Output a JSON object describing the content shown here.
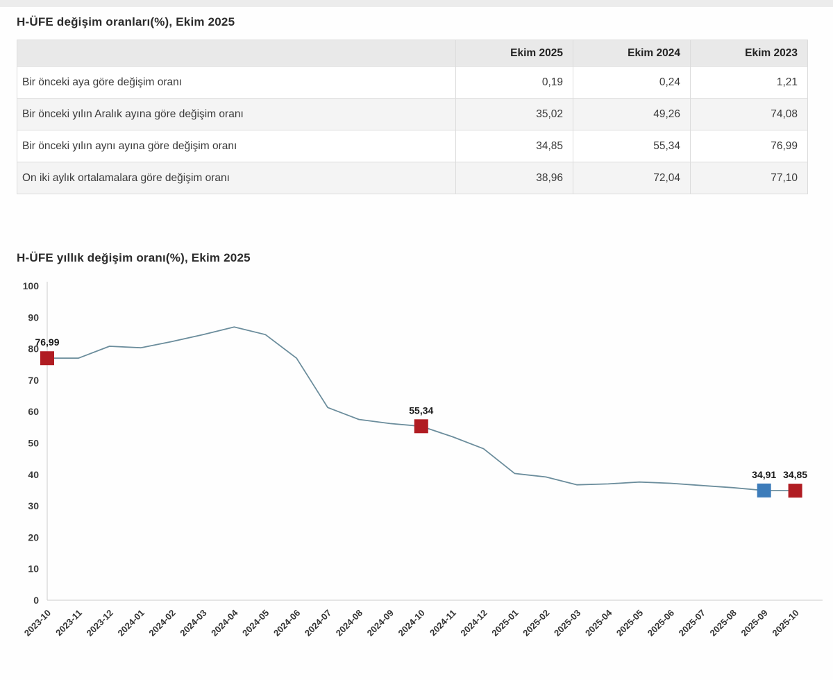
{
  "page": {
    "table_title": "H-ÜFE değişim oranları(%), Ekim 2025",
    "chart_title": "H-ÜFE yıllık değişim oranı(%), Ekim 2025"
  },
  "table": {
    "columns": [
      "",
      "Ekim 2025",
      "Ekim 2024",
      "Ekim 2023"
    ],
    "rows": [
      {
        "label": "Bir önceki aya göre değişim oranı",
        "values": [
          "0,19",
          "0,24",
          "1,21"
        ]
      },
      {
        "label": "Bir önceki yılın Aralık ayına göre değişim oranı",
        "values": [
          "35,02",
          "49,26",
          "74,08"
        ]
      },
      {
        "label": "Bir önceki yılın aynı ayına göre değişim oranı",
        "values": [
          "34,85",
          "55,34",
          "76,99"
        ]
      },
      {
        "label": "On iki aylık ortalamalara göre değişim oranı",
        "values": [
          "38,96",
          "72,04",
          "77,10"
        ]
      }
    ]
  },
  "chart_data": {
    "type": "line",
    "title": "H-ÜFE yıllık değişim oranı(%), Ekim 2025",
    "xlabel": "",
    "ylabel": "",
    "ylim": [
      0,
      100
    ],
    "ytick_step": 10,
    "grid": false,
    "legend": "none",
    "line_color": "#6b8d9c",
    "axis_color": "#cccccc",
    "x": [
      "2023-10",
      "2023-11",
      "2023-12",
      "2024-01",
      "2024-02",
      "2024-03",
      "2024-04",
      "2024-05",
      "2024-06",
      "2024-07",
      "2024-08",
      "2024-09",
      "2024-10",
      "2024-11",
      "2024-12",
      "2025-01",
      "2025-02",
      "2025-03",
      "2025-04",
      "2025-05",
      "2025-06",
      "2025-07",
      "2025-08",
      "2025-09",
      "2025-10"
    ],
    "values": [
      76.99,
      77.0,
      80.8,
      80.3,
      82.3,
      84.5,
      86.9,
      84.5,
      77.0,
      61.3,
      57.5,
      56.2,
      55.34,
      52.0,
      48.2,
      40.3,
      39.2,
      36.7,
      37.0,
      37.6,
      37.2,
      36.5,
      35.8,
      34.91,
      34.85
    ],
    "marker_colors": {
      "red": "#b01c22",
      "blue": "#3d7cba"
    },
    "annotations": [
      {
        "index": 0,
        "label": "76,99",
        "marker": "red"
      },
      {
        "index": 12,
        "label": "55,34",
        "marker": "red"
      },
      {
        "index": 23,
        "label": "34,91",
        "marker": "blue"
      },
      {
        "index": 24,
        "label": "34,85",
        "marker": "red"
      }
    ]
  }
}
